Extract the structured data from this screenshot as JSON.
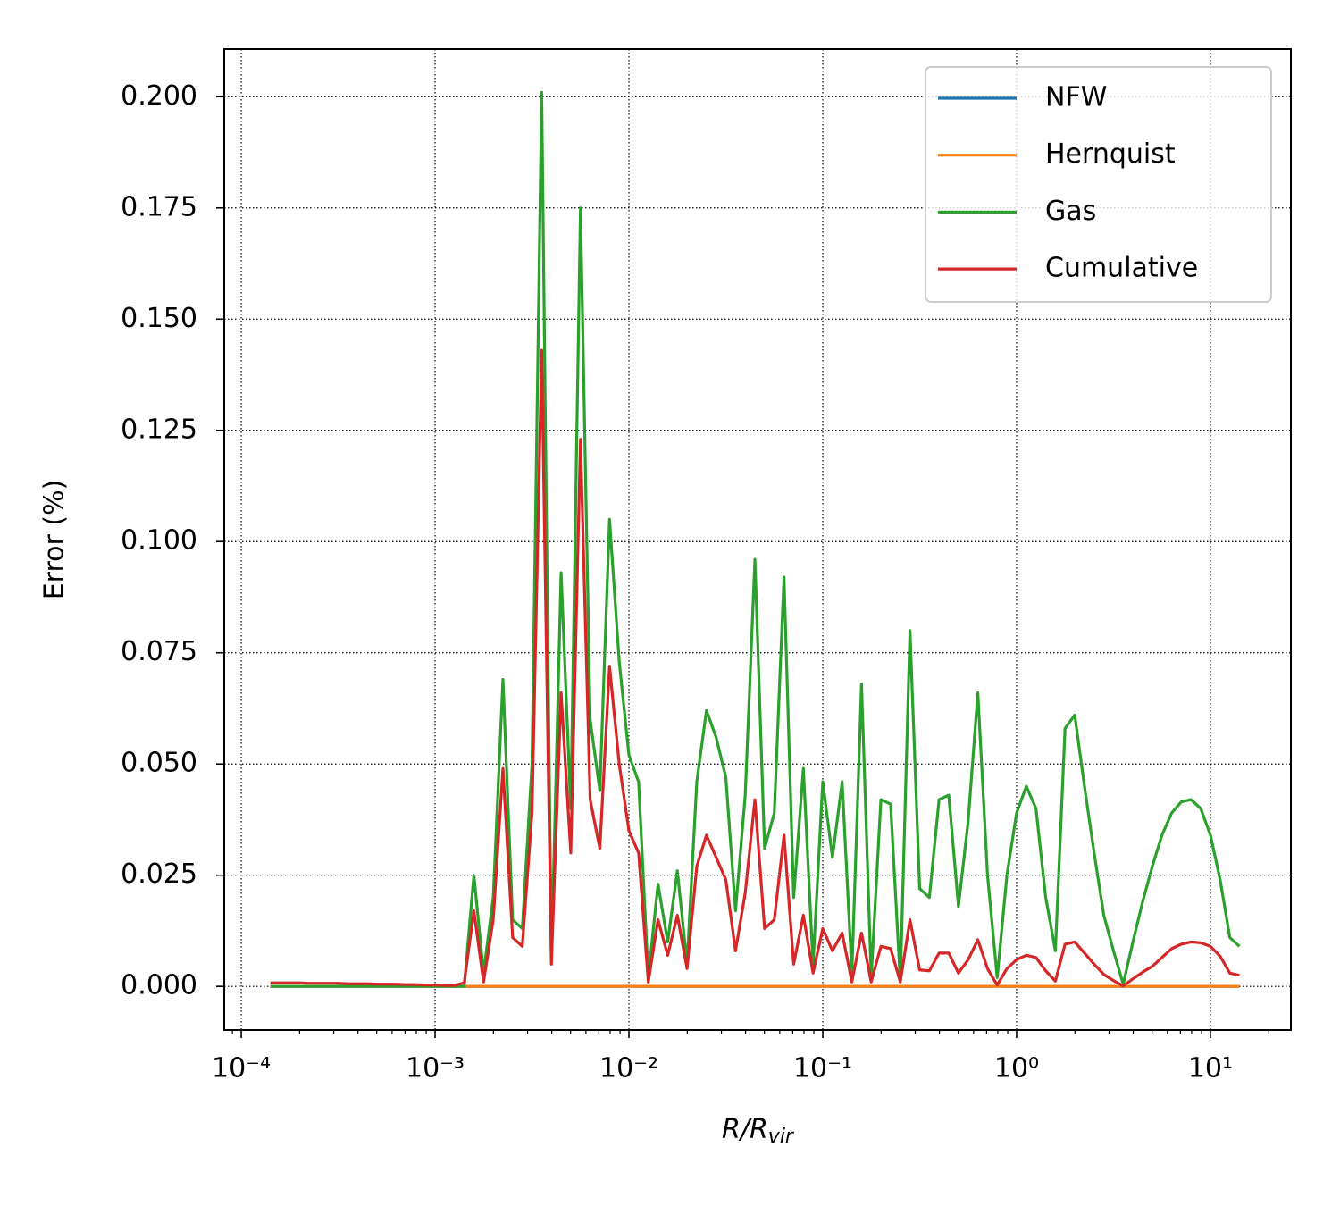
{
  "chart_data": {
    "type": "line",
    "xlabel": {
      "main": "R/R",
      "sub": "vir"
    },
    "ylabel": "Error (%)",
    "xscale": "log",
    "grid": true,
    "legend": "upper right",
    "xlim": [
      8.17e-05,
      26.0
    ],
    "ylim": [
      -0.0098,
      0.2107
    ],
    "xticks": [
      {
        "value": 0.0001,
        "label": "10⁻⁴"
      },
      {
        "value": 0.001,
        "label": "10⁻³"
      },
      {
        "value": 0.01,
        "label": "10⁻²"
      },
      {
        "value": 0.1,
        "label": "10⁻¹"
      },
      {
        "value": 1,
        "label": "10⁰"
      },
      {
        "value": 10,
        "label": "10¹"
      }
    ],
    "yticks": [
      {
        "value": 0,
        "label": "0.000"
      },
      {
        "value": 0.025,
        "label": "0.025"
      },
      {
        "value": 0.05,
        "label": "0.050"
      },
      {
        "value": 0.075,
        "label": "0.075"
      },
      {
        "value": 0.1,
        "label": "0.100"
      },
      {
        "value": 0.125,
        "label": "0.125"
      },
      {
        "value": 0.15,
        "label": "0.150"
      },
      {
        "value": 0.175,
        "label": "0.175"
      },
      {
        "value": 0.2,
        "label": "0.200"
      }
    ],
    "x": [
      0.0001413,
      0.0001585,
      0.0001778,
      0.0001995,
      0.0002239,
      0.0002512,
      0.0002818,
      0.0003162,
      0.0003548,
      0.0003981,
      0.0004467,
      0.0005012,
      0.0005623,
      0.000631,
      0.0007079,
      0.0007943,
      0.0008913,
      0.001,
      0.001122,
      0.001259,
      0.001413,
      0.001585,
      0.001778,
      0.001995,
      0.002239,
      0.002512,
      0.002818,
      0.003162,
      0.003548,
      0.003981,
      0.004467,
      0.005012,
      0.005623,
      0.00631,
      0.007079,
      0.007943,
      0.008913,
      0.01,
      0.01122,
      0.01259,
      0.01413,
      0.01585,
      0.01778,
      0.01995,
      0.02239,
      0.02512,
      0.02818,
      0.03162,
      0.03548,
      0.03981,
      0.04467,
      0.05012,
      0.05623,
      0.0631,
      0.07079,
      0.07943,
      0.08913,
      0.1,
      0.1122,
      0.1259,
      0.1413,
      0.1585,
      0.1778,
      0.1995,
      0.2239,
      0.2512,
      0.2818,
      0.3162,
      0.3548,
      0.3981,
      0.4467,
      0.5012,
      0.5623,
      0.631,
      0.7079,
      0.7943,
      0.8913,
      1,
      1.122,
      1.259,
      1.413,
      1.585,
      1.778,
      1.995,
      2.239,
      2.512,
      2.818,
      3.162,
      3.548,
      3.981,
      4.467,
      5.012,
      5.623,
      6.31,
      7.079,
      7.943,
      8.913,
      10,
      11.22,
      12.59,
      14.13
    ],
    "series": [
      {
        "name": "NFW",
        "color": "#1f77b4",
        "values": [
          0,
          0,
          0,
          0,
          0,
          0,
          0,
          0,
          0,
          0,
          0,
          0,
          0,
          0,
          0,
          0,
          0,
          0,
          0,
          0,
          0,
          0,
          0,
          0,
          0,
          0,
          0,
          0,
          0,
          0,
          0,
          0,
          0,
          0,
          0,
          0,
          0,
          0,
          0,
          0,
          0,
          0,
          0,
          0,
          0,
          0,
          0,
          0,
          0,
          0,
          0,
          0,
          0,
          0,
          0,
          0,
          0,
          0,
          0,
          0,
          0,
          0,
          0,
          0,
          0,
          0,
          0,
          0,
          0,
          0,
          0,
          0,
          0,
          0,
          0,
          0,
          0,
          0,
          0,
          0,
          0,
          0,
          0,
          0,
          0,
          0,
          0,
          0,
          0,
          0,
          0,
          0,
          0,
          0,
          0,
          0,
          0,
          0,
          0,
          0,
          0
        ]
      },
      {
        "name": "Hernquist",
        "color": "#ff7f0e",
        "values": [
          0,
          0,
          0,
          0,
          0,
          0,
          0,
          0,
          0,
          0,
          0,
          0,
          0,
          0,
          0,
          0,
          0,
          0,
          0,
          0,
          0,
          0,
          0,
          0,
          0,
          0,
          0,
          0,
          0,
          0,
          0,
          0,
          0,
          0,
          0,
          0,
          0,
          0,
          0,
          0,
          0,
          0,
          0,
          0,
          0,
          0,
          0,
          0,
          0,
          0,
          0,
          0,
          0,
          0,
          0,
          0,
          0,
          0,
          0,
          0,
          0,
          0,
          0,
          0,
          0,
          0,
          0,
          0,
          0,
          0,
          0,
          0,
          0,
          0,
          0,
          0,
          0,
          0,
          0,
          0,
          0,
          0,
          0,
          0,
          0,
          0,
          0,
          0,
          0,
          0,
          0,
          0,
          0,
          0,
          0,
          0,
          0,
          0,
          0,
          0,
          0
        ]
      },
      {
        "name": "Gas",
        "color": "#2ca02c",
        "values": [
          0,
          0,
          0,
          0,
          0,
          0,
          0,
          0,
          0,
          0,
          0,
          0,
          0,
          0,
          0,
          0,
          0,
          0,
          0,
          0,
          0,
          0.025,
          0.003,
          0.02,
          0.069,
          0.015,
          0.013,
          0.05,
          0.201,
          0.006,
          0.093,
          0.04,
          0.175,
          0.06,
          0.044,
          0.105,
          0.073,
          0.052,
          0.046,
          0.002,
          0.023,
          0.01,
          0.026,
          0.005,
          0.046,
          0.062,
          0.056,
          0.047,
          0.017,
          0.043,
          0.096,
          0.031,
          0.039,
          0.092,
          0.02,
          0.049,
          0.005,
          0.046,
          0.029,
          0.046,
          0.003,
          0.068,
          0.002,
          0.042,
          0.041,
          0.001,
          0.08,
          0.022,
          0.02,
          0.042,
          0.043,
          0.018,
          0.037,
          0.066,
          0.025,
          0.002,
          0.025,
          0.039,
          0.045,
          0.04,
          0.02,
          0.008,
          0.058,
          0.061,
          0.045,
          0.03,
          0.016,
          0.008,
          0.0005,
          0.01,
          0.019,
          0.027,
          0.034,
          0.039,
          0.0415,
          0.042,
          0.04,
          0.034,
          0.024,
          0.011,
          0.009
        ]
      },
      {
        "name": "Cumulative",
        "color": "#d62728",
        "values": [
          0.0008,
          0.0008,
          0.0008,
          0.0008,
          0.0007,
          0.0007,
          0.0007,
          0.0007,
          0.0006,
          0.0006,
          0.0006,
          0.0005,
          0.0005,
          0.0005,
          0.0004,
          0.0004,
          0.0003,
          0.0003,
          0.0002,
          0.0002,
          0.0008,
          0.017,
          0.001,
          0.015,
          0.049,
          0.011,
          0.009,
          0.039,
          0.143,
          0.005,
          0.066,
          0.03,
          0.123,
          0.042,
          0.031,
          0.072,
          0.05,
          0.035,
          0.03,
          0.001,
          0.015,
          0.007,
          0.016,
          0.004,
          0.027,
          0.034,
          0.029,
          0.024,
          0.008,
          0.021,
          0.042,
          0.013,
          0.015,
          0.034,
          0.005,
          0.016,
          0.003,
          0.013,
          0.008,
          0.012,
          0.001,
          0.012,
          0.001,
          0.009,
          0.0085,
          0.001,
          0.015,
          0.0037,
          0.0035,
          0.0075,
          0.0075,
          0.003,
          0.006,
          0.0105,
          0.004,
          0.0003,
          0.004,
          0.006,
          0.007,
          0.0065,
          0.0035,
          0.0012,
          0.0095,
          0.01,
          0.0075,
          0.005,
          0.0027,
          0.0013,
          0.0001,
          0.0017,
          0.0032,
          0.0045,
          0.0065,
          0.0085,
          0.0095,
          0.01,
          0.0098,
          0.009,
          0.0068,
          0.003,
          0.0025
        ]
      }
    ]
  }
}
